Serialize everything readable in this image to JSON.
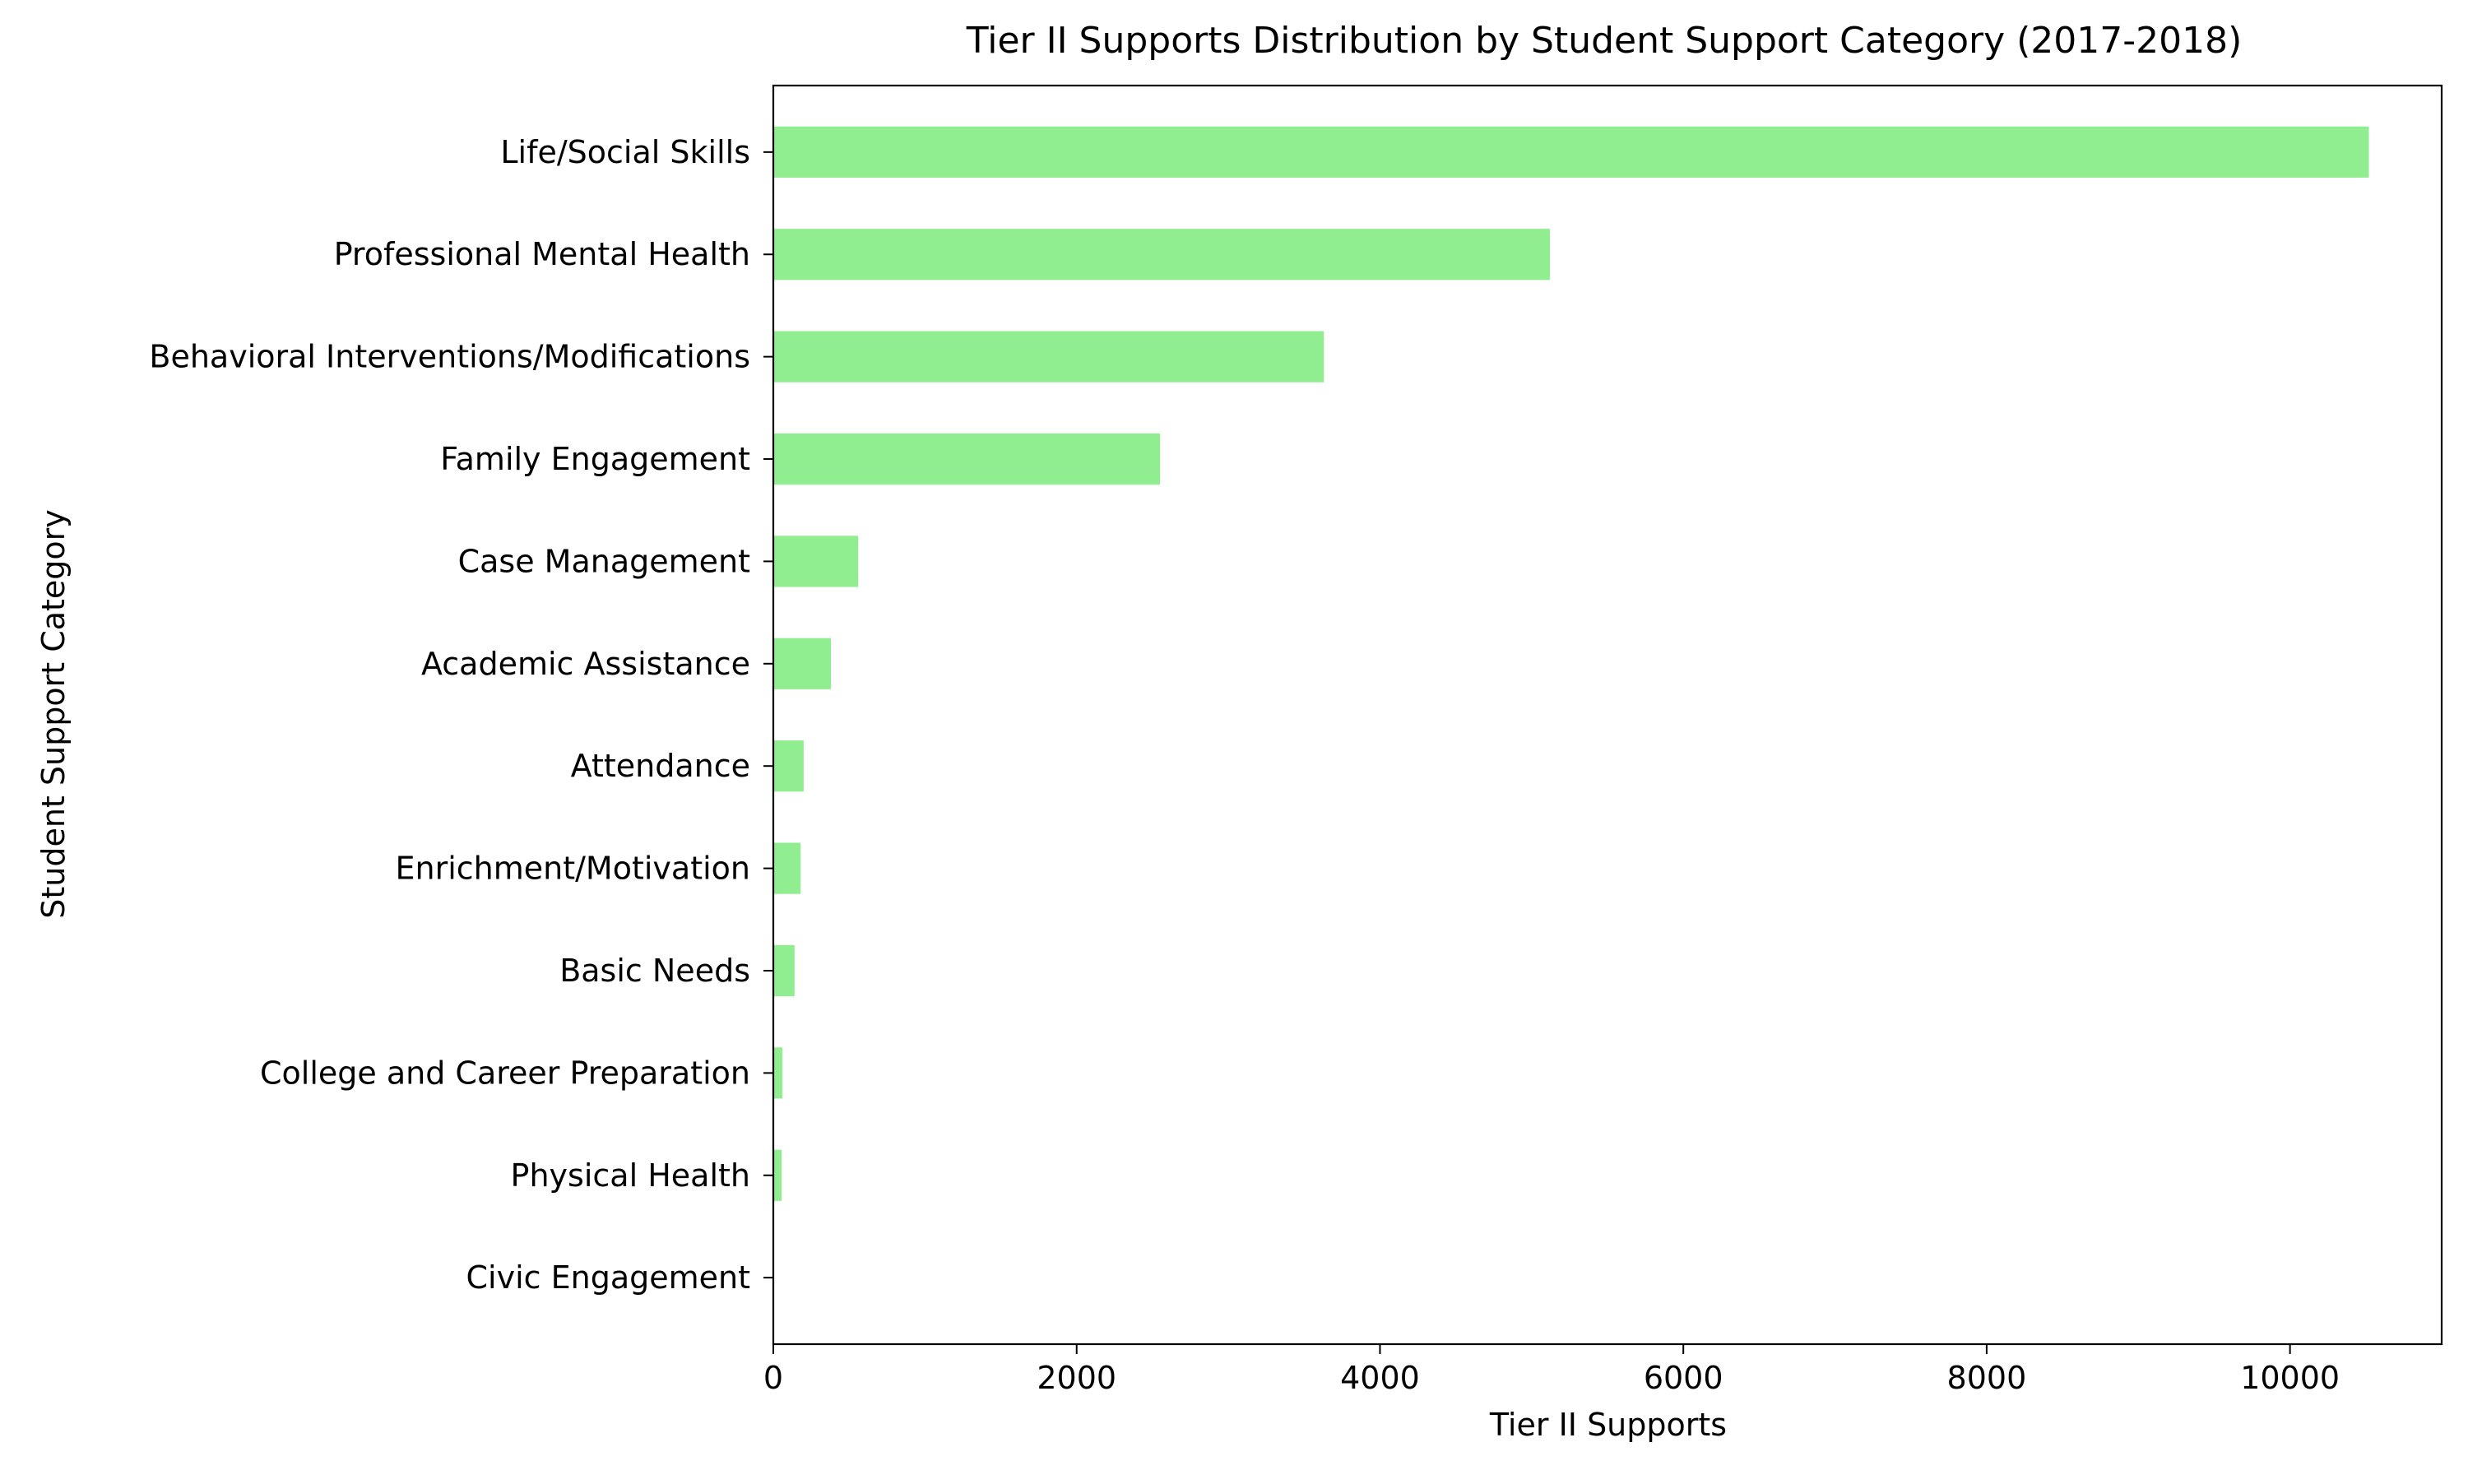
{
  "colors": {
    "bar": "#90ee90",
    "axis": "#000000",
    "background": "#ffffff"
  },
  "chart_data": {
    "type": "bar",
    "orientation": "horizontal",
    "title": "Tier II Supports Distribution by Student Support Category (2017-2018)",
    "xlabel": "Tier II Supports",
    "ylabel": "Student Support Category",
    "xlim": [
      0,
      11000
    ],
    "xticks": [
      0,
      2000,
      4000,
      6000,
      8000,
      10000
    ],
    "grid": false,
    "legend": "none",
    "categories": [
      "Life/Social Skills",
      "Professional Mental Health",
      "Behavioral Interventions/Modifications",
      "Family Engagement",
      "Case Management",
      "Academic Assistance",
      "Attendance",
      "Enrichment/Motivation",
      "Basic Needs",
      "College and Career Preparation",
      "Physical Health",
      "Civic Engagement"
    ],
    "values": [
      10520,
      5120,
      3630,
      2550,
      560,
      380,
      200,
      180,
      140,
      60,
      55,
      3
    ]
  }
}
